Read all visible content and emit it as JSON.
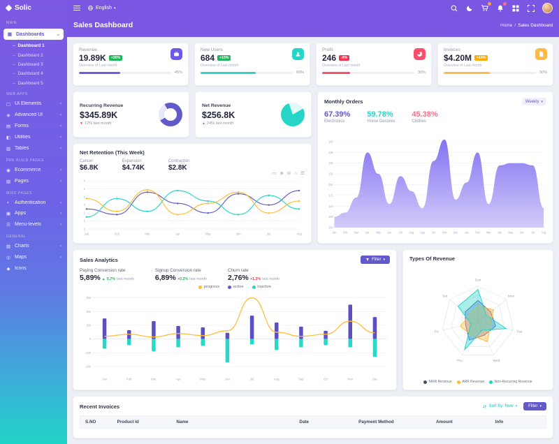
{
  "app": {
    "name": "Solic"
  },
  "topbar": {
    "language": {
      "label": "English"
    },
    "icons": [
      {
        "name": "search-icon"
      },
      {
        "name": "theme-icon"
      },
      {
        "name": "cart-icon",
        "badge": true,
        "badge_color": "#ff9f43"
      },
      {
        "name": "notifications-icon",
        "badge": true,
        "badge_color": "#fb6b8c"
      },
      {
        "name": "apps-icon"
      },
      {
        "name": "fullscreen-icon"
      }
    ]
  },
  "page": {
    "title": "Sales Dashboard",
    "breadcrumb": {
      "parent": "Home",
      "separator": "/",
      "current": "Sales Dashboard"
    }
  },
  "sidebar": {
    "sections": [
      {
        "label": "MAIN",
        "items": [
          {
            "label": "Dashboards",
            "icon": "dashboard-icon",
            "active": true,
            "expanded": true,
            "children": [
              {
                "label": "Dashboard 1",
                "active": true
              },
              {
                "label": "Dashboard 2"
              },
              {
                "label": "Dashboard 3"
              },
              {
                "label": "Dashboard 4"
              },
              {
                "label": "Dashboard 5"
              }
            ]
          }
        ]
      },
      {
        "label": "WEB APPS",
        "items": [
          {
            "label": "UI Elements",
            "icon": "ui-icon",
            "chevron": true
          },
          {
            "label": "Advanced UI",
            "icon": "advanced-icon",
            "chevron": true
          },
          {
            "label": "Forms",
            "icon": "forms-icon",
            "chevron": true
          },
          {
            "label": "Utilities",
            "icon": "utilities-icon",
            "chevron": true
          },
          {
            "label": "Tables",
            "icon": "tables-icon",
            "chevron": true
          }
        ]
      },
      {
        "label": "PRE BUILD PAGES",
        "items": [
          {
            "label": "Ecommerce",
            "icon": "ecommerce-icon",
            "chevron": true
          },
          {
            "label": "Pages",
            "icon": "pages-icon",
            "chevron": true
          }
        ]
      },
      {
        "label": "MISC PAGES",
        "items": [
          {
            "label": "Authentication",
            "icon": "auth-icon",
            "chevron": true
          },
          {
            "label": "Apps",
            "icon": "apps2-icon",
            "chevron": true
          },
          {
            "label": "Menu-levels",
            "icon": "menu-icon",
            "chevron": true
          }
        ]
      },
      {
        "label": "GENERAL",
        "items": [
          {
            "label": "Charts",
            "icon": "charts-icon",
            "chevron": true
          },
          {
            "label": "Maps",
            "icon": "maps-icon",
            "chevron": true
          },
          {
            "label": "Icons",
            "icon": "icons-icon"
          }
        ]
      }
    ]
  },
  "stat_cards": [
    {
      "label": "Revenue",
      "value": "19.89K",
      "badge": "+35%",
      "badge_color": "#1fb75c",
      "note": "Overview of Last month",
      "progress": 45,
      "progress_label": "45%",
      "color": "#6f5ae8",
      "icon": "briefcase-icon"
    },
    {
      "label": "New Users",
      "value": "684",
      "badge": "+15%",
      "badge_color": "#1fb75c",
      "note": "Overview of Last month",
      "progress": 60,
      "progress_label": "60%",
      "color": "#24d5c8",
      "icon": "user-icon"
    },
    {
      "label": "Profit",
      "value": "246",
      "badge": "-9%",
      "badge_color": "#f5334f",
      "note": "Overview of Last month",
      "progress": 30,
      "progress_label": "30%",
      "color": "#fb4e6d",
      "icon": "chart-icon"
    },
    {
      "label": "Invoices",
      "value": "$4.20M",
      "badge": "+16%",
      "badge_color": "#ffab00",
      "note": "Overview of Last month",
      "progress": 50,
      "progress_label": "50%",
      "color": "#ffb946",
      "icon": "invoice-icon"
    }
  ],
  "revenue_cards": [
    {
      "title": "Recurring Revenue",
      "value": "$345.89K",
      "delta": "12% last month",
      "direction": "down",
      "delta_color": "#f5334f",
      "chart": {
        "type": "donut",
        "percent": 75,
        "from": 330,
        "color": "#6259ca",
        "track": "#e8e9f8"
      }
    },
    {
      "title": "Net Revenue",
      "value": "$256.8K",
      "delta": "24% last month",
      "direction": "up",
      "delta_color": "#1fb75c",
      "chart": {
        "type": "pie",
        "percent": 78,
        "from": 60,
        "color": "#24d5c8",
        "track": "#e2f8f5"
      }
    }
  ],
  "monthly_orders": {
    "title": "Monthly Orders",
    "range_label": "Weekly",
    "stats": [
      {
        "value": "67.39%",
        "label": "Electronics",
        "color": "#6259ca"
      },
      {
        "value": "59.78%",
        "label": "Home Decores",
        "color": "#24d5c8"
      },
      {
        "value": "45.38%",
        "label": "Clothes",
        "color": "#fb6b8c"
      }
    ],
    "chart_data": {
      "type": "area",
      "x": [
        "Jan",
        "Feb",
        "Mar",
        "Apr",
        "May",
        "Jun",
        "Jul",
        "Aug",
        "Sep",
        "Oct",
        "Nov",
        "Dec",
        "Jan",
        "Feb",
        "Mar",
        "Apr",
        "May",
        "Jun",
        "Jul",
        "Aug"
      ],
      "values": [
        105,
        107,
        114,
        135,
        125,
        111,
        124,
        117,
        109,
        131,
        141,
        113,
        121,
        135,
        111,
        129,
        130,
        130,
        129,
        109
      ],
      "ylim": [
        100,
        145
      ],
      "yticks": [
        100,
        105,
        110,
        115,
        120,
        125,
        130,
        135,
        140
      ],
      "color": "#7c6cf0"
    }
  },
  "net_retention": {
    "title": "Net Retention (This Week)",
    "stats": [
      {
        "label": "Cancel",
        "value": "$6.8K"
      },
      {
        "label": "Expansion",
        "value": "$4.74K"
      },
      {
        "label": "Contraction",
        "value": "$2.8K"
      }
    ],
    "toolbar": [
      "selection",
      "zoom-in",
      "zoom-out",
      "home",
      "menu"
    ],
    "chart_data": {
      "type": "line",
      "x": [
        "Jan",
        "Feb",
        "Mar",
        "Apr",
        "May",
        "Jun",
        "Jul",
        "Aug"
      ],
      "ylim": [
        0,
        6
      ],
      "yticks": [
        0,
        1,
        2,
        3,
        4,
        5,
        6
      ],
      "series": [
        {
          "name": "series-purple",
          "color": "#6259ca",
          "values": [
            2.5,
            1.8,
            4.6,
            3.2,
            2.0,
            4.4,
            3.0,
            4.8
          ]
        },
        {
          "name": "series-teal",
          "color": "#24d5c8",
          "values": [
            1.5,
            3.8,
            2.2,
            4.8,
            3.5,
            1.8,
            4.2,
            2.5
          ]
        },
        {
          "name": "series-amber",
          "color": "#ffbc34",
          "values": [
            3.8,
            2.2,
            4.9,
            1.8,
            3.2,
            4.6,
            2.0,
            3.5
          ]
        }
      ]
    }
  },
  "sales_analytics": {
    "title": "Sales Analytics",
    "filter_label": "Filter",
    "stats": [
      {
        "label": "Paying Conversion rate",
        "value": "5,89%",
        "delta": "0,7%",
        "suffix": "last month",
        "delta_color": "#1fb75c",
        "delta_dir": "up"
      },
      {
        "label": "Signup Conversion rate",
        "value": "6,89%",
        "delta": "+0.2%",
        "suffix": "last month",
        "delta_color": "#1fb75c"
      },
      {
        "label": "Churn rate",
        "value": "2,76%",
        "delta": "+1.3%",
        "suffix": "last month",
        "delta_color": "#f5334f"
      }
    ],
    "legend": [
      {
        "label": "progress",
        "color": "#ffbc34"
      },
      {
        "label": "active",
        "color": "#6259ca"
      },
      {
        "label": "inactive",
        "color": "#24d5c8"
      }
    ],
    "chart_data": {
      "type": "combo",
      "x": [
        "Jan",
        "Feb",
        "Mar",
        "Apr",
        "May",
        "Jun",
        "Jul",
        "Aug",
        "Sep",
        "Oct",
        "Nov",
        "Dec"
      ],
      "ylim": [
        -250,
        320
      ],
      "yticks": [
        300,
        200,
        100,
        0,
        -100,
        -200
      ],
      "bars_up": {
        "name": "active",
        "color": "#5b4fc7",
        "values": [
          150,
          65,
          130,
          95,
          85,
          45,
          170,
          120,
          90,
          60,
          250,
          160
        ]
      },
      "bars_down": {
        "name": "inactive",
        "color": "#2ad9c5",
        "values": [
          -70,
          -45,
          -90,
          -60,
          -50,
          -170,
          -40,
          -80,
          -60,
          -45,
          -60,
          -130
        ]
      },
      "line": {
        "name": "progress",
        "color": "#ffbc34",
        "values": [
          20,
          35,
          15,
          40,
          25,
          60,
          300,
          50,
          20,
          35,
          130,
          45
        ]
      }
    }
  },
  "types_of_revenue": {
    "title": "Types Of Revenue",
    "legend": [
      {
        "label": "MRR Revenue",
        "color": "#4a4a68"
      },
      {
        "label": "ARR Revenue",
        "color": "#ffbc34"
      },
      {
        "label": "Non-Recurring Revenue",
        "color": "#24d5c8"
      }
    ],
    "chart_data": {
      "type": "radar",
      "axes": [
        "Sun",
        "Mon",
        "Tue",
        "Wed",
        "Thu",
        "Fri",
        "Sat"
      ],
      "max": 100,
      "series": [
        {
          "name": "MRR Revenue",
          "color": "#6259ca",
          "values": [
            60,
            45,
            50,
            40,
            55,
            35,
            45
          ]
        },
        {
          "name": "ARR Revenue",
          "color": "#ffbc34",
          "values": [
            45,
            55,
            35,
            60,
            40,
            50,
            30
          ]
        },
        {
          "name": "Non-Recurring Revenue",
          "color": "#24d5c8",
          "values": [
            90,
            30,
            80,
            25,
            85,
            20,
            70
          ]
        }
      ]
    }
  },
  "recent_invoices": {
    "title": "Recent Invoices",
    "sort_label": "Sort By: New",
    "filter_label": "Filter",
    "columns": [
      "S.NO",
      "Product Id",
      "Name",
      "Date",
      "Payment Method",
      "Amount",
      "Info"
    ]
  }
}
